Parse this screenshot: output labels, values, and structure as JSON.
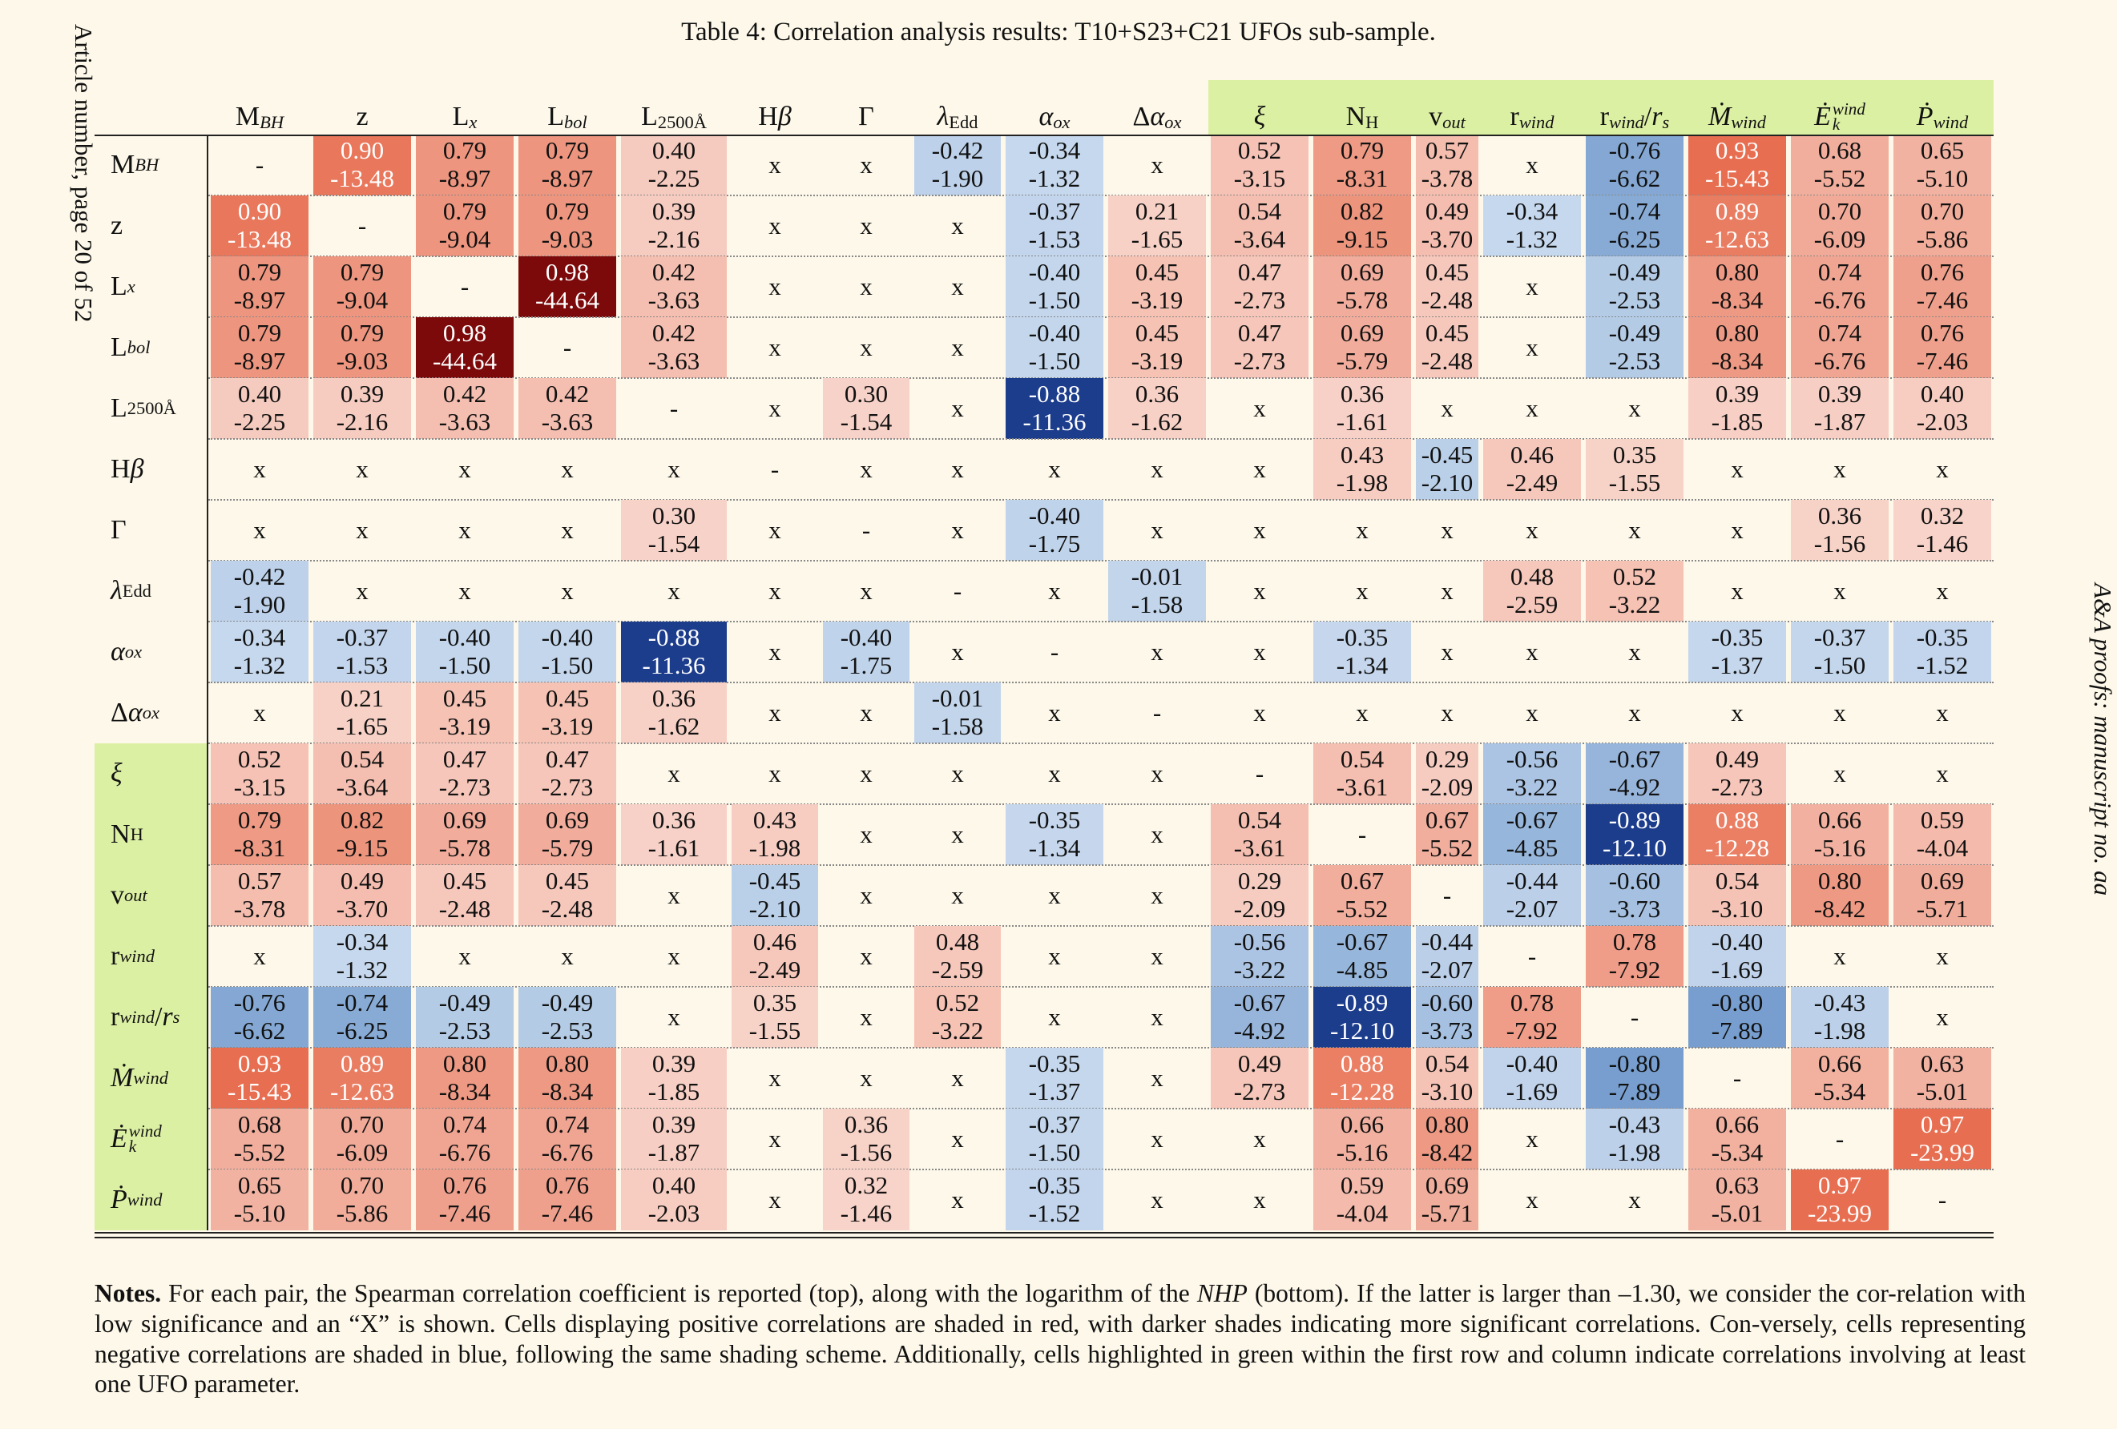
{
  "side_left": "Article number, page 20 of 52",
  "side_right": "A&A proofs: manuscript no. aa",
  "caption": "Table 4: Correlation analysis results: T10+S23+C21 UFOs sub-sample.",
  "notes": {
    "bold": "Notes.",
    "p1": " For each pair, the Spearman correlation coefficient is reported (top), along with the logarithm of the ",
    "nhp": "NHP",
    "p2": " (bottom). If the latter is larger than –1.30, we consider the cor-relation with low significance and an “X” is shown. Cells displaying positive correlations are shaded in red, with darker shades indicating more significant correlations. Con-versely, cells representing negative correlations are shaded in blue, following the same shading scheme. Additionally, cells highlighted in green within the first row and column indicate correlations involving at least one UFO parameter."
  },
  "colors": {
    "positive": "#c1272d",
    "negative": "#1f4e9a",
    "ufo_highlight": "#dcf0a4",
    "background": "#fdf8e9"
  },
  "params": [
    {
      "base": "M",
      "sub": "BH",
      "ital": false,
      "ufo": false
    },
    {
      "base": "z",
      "ital": false,
      "ufo": false
    },
    {
      "base": "L",
      "sub": "x",
      "ufo": false
    },
    {
      "base": "L",
      "sub": "bol",
      "ufo": false
    },
    {
      "base": "L",
      "sub": "2500Å",
      "subRoman": true,
      "ufo": false
    },
    {
      "base": "Hβ",
      "betaItal": true,
      "ufo": false
    },
    {
      "base": "Γ",
      "ufo": false
    },
    {
      "base": "λ",
      "sub": "Edd",
      "subRoman": true,
      "baseItal": true,
      "ufo": false
    },
    {
      "base": "α",
      "sub": "ox",
      "baseItal": true,
      "ufo": false
    },
    {
      "base": "Δα",
      "sub": "ox",
      "alphaItal": true,
      "ufo": false
    },
    {
      "base": "ξ",
      "baseItal": true,
      "ufo": true
    },
    {
      "base": "N",
      "sub": "H",
      "subRoman": true,
      "ufo": true
    },
    {
      "base": "v",
      "sub": "out",
      "ufo": true
    },
    {
      "base": "r",
      "sub": "wind",
      "ufo": true
    },
    {
      "base": "r",
      "sub": "wind",
      "suffix": "/r",
      "suffixSub": "s",
      "ufo": true
    },
    {
      "base": "Ṁ",
      "sub": "wind",
      "baseItal": true,
      "ufo": true
    },
    {
      "base": "Ė",
      "sub": "k",
      "sup": "wind",
      "baseItal": true,
      "ufo": true
    },
    {
      "base": "Ṗ",
      "sub": "wind",
      "baseItal": true,
      "ufo": true
    }
  ],
  "rows": [
    [
      "-",
      "0.90|-13.48",
      "0.79|-8.97",
      "0.79|-8.97",
      "0.40|-2.25",
      "x",
      "x",
      "-0.42|-1.90",
      "-0.34|-1.32",
      "x",
      "0.52|-3.15",
      "0.79|-8.31",
      "0.57|-3.78",
      "x",
      "-0.76|-6.62",
      "0.93|-15.43",
      "0.68|-5.52",
      "0.65|-5.10"
    ],
    [
      "0.90|-13.48",
      "-",
      "0.79|-9.04",
      "0.79|-9.03",
      "0.39|-2.16",
      "x",
      "x",
      "x",
      "-0.37|-1.53",
      "0.21|-1.65",
      "0.54|-3.64",
      "0.82|-9.15",
      "0.49|-3.70",
      "-0.34|-1.32",
      "-0.74|-6.25",
      "0.89|-12.63",
      "0.70|-6.09",
      "0.70|-5.86"
    ],
    [
      "0.79|-8.97",
      "0.79|-9.04",
      "-",
      "0.98|-44.64",
      "0.42|-3.63",
      "x",
      "x",
      "x",
      "-0.40|-1.50",
      "0.45|-3.19",
      "0.47|-2.73",
      "0.69|-5.78",
      "0.45|-2.48",
      "x",
      "-0.49|-2.53",
      "0.80|-8.34",
      "0.74|-6.76",
      "0.76|-7.46"
    ],
    [
      "0.79|-8.97",
      "0.79|-9.03",
      "0.98|-44.64",
      "-",
      "0.42|-3.63",
      "x",
      "x",
      "x",
      "-0.40|-1.50",
      "0.45|-3.19",
      "0.47|-2.73",
      "0.69|-5.79",
      "0.45|-2.48",
      "x",
      "-0.49|-2.53",
      "0.80|-8.34",
      "0.74|-6.76",
      "0.76|-7.46"
    ],
    [
      "0.40|-2.25",
      "0.39|-2.16",
      "0.42|-3.63",
      "0.42|-3.63",
      "-",
      "x",
      "0.30|-1.54",
      "x",
      "-0.88|-11.36",
      "0.36|-1.62",
      "x",
      "0.36|-1.61",
      "x",
      "x",
      "x",
      "0.39|-1.85",
      "0.39|-1.87",
      "0.40|-2.03"
    ],
    [
      "x",
      "x",
      "x",
      "x",
      "x",
      "-",
      "x",
      "x",
      "x",
      "x",
      "x",
      "0.43|-1.98",
      "-0.45|-2.10",
      "0.46|-2.49",
      "0.35|-1.55",
      "x",
      "x",
      "x"
    ],
    [
      "x",
      "x",
      "x",
      "x",
      "0.30|-1.54",
      "x",
      "-",
      "x",
      "-0.40|-1.75",
      "x",
      "x",
      "x",
      "x",
      "x",
      "x",
      "x",
      "0.36|-1.56",
      "0.32|-1.46"
    ],
    [
      "-0.42|-1.90",
      "x",
      "x",
      "x",
      "x",
      "x",
      "x",
      "-",
      "x",
      "-0.01|-1.58",
      "x",
      "x",
      "x",
      "0.48|-2.59",
      "0.52|-3.22",
      "x",
      "x",
      "x"
    ],
    [
      "-0.34|-1.32",
      "-0.37|-1.53",
      "-0.40|-1.50",
      "-0.40|-1.50",
      "-0.88|-11.36",
      "x",
      "-0.40|-1.75",
      "x",
      "-",
      "x",
      "x",
      "-0.35|-1.34",
      "x",
      "x",
      "x",
      "-0.35|-1.37",
      "-0.37|-1.50",
      "-0.35|-1.52"
    ],
    [
      "x",
      "0.21|-1.65",
      "0.45|-3.19",
      "0.45|-3.19",
      "0.36|-1.62",
      "x",
      "x",
      "-0.01|-1.58",
      "x",
      "-",
      "x",
      "x",
      "x",
      "x",
      "x",
      "x",
      "x",
      "x"
    ],
    [
      "0.52|-3.15",
      "0.54|-3.64",
      "0.47|-2.73",
      "0.47|-2.73",
      "x",
      "x",
      "x",
      "x",
      "x",
      "x",
      "-",
      "0.54|-3.61",
      "0.29|-2.09",
      "-0.56|-3.22",
      "-0.67|-4.92",
      "0.49|-2.73",
      "x",
      "x"
    ],
    [
      "0.79|-8.31",
      "0.82|-9.15",
      "0.69|-5.78",
      "0.69|-5.79",
      "0.36|-1.61",
      "0.43|-1.98",
      "x",
      "x",
      "-0.35|-1.34",
      "x",
      "0.54|-3.61",
      "-",
      "0.67|-5.52",
      "-0.67|-4.85",
      "-0.89|-12.10",
      "0.88|-12.28",
      "0.66|-5.16",
      "0.59|-4.04"
    ],
    [
      "0.57|-3.78",
      "0.49|-3.70",
      "0.45|-2.48",
      "0.45|-2.48",
      "x",
      "-0.45|-2.10",
      "x",
      "x",
      "x",
      "x",
      "0.29|-2.09",
      "0.67|-5.52",
      "-",
      "-0.44|-2.07",
      "-0.60|-3.73",
      "0.54|-3.10",
      "0.80|-8.42",
      "0.69|-5.71"
    ],
    [
      "x",
      "-0.34|-1.32",
      "x",
      "x",
      "x",
      "0.46|-2.49",
      "x",
      "0.48|-2.59",
      "x",
      "x",
      "-0.56|-3.22",
      "-0.67|-4.85",
      "-0.44|-2.07",
      "-",
      "0.78|-7.92",
      "-0.40|-1.69",
      "x",
      "x"
    ],
    [
      "-0.76|-6.62",
      "-0.74|-6.25",
      "-0.49|-2.53",
      "-0.49|-2.53",
      "x",
      "0.35|-1.55",
      "x",
      "0.52|-3.22",
      "x",
      "x",
      "-0.67|-4.92",
      "-0.89|-12.10",
      "-0.60|-3.73",
      "0.78|-7.92",
      "-",
      "-0.80|-7.89",
      "-0.43|-1.98",
      "x"
    ],
    [
      "0.93|-15.43",
      "0.89|-12.63",
      "0.80|-8.34",
      "0.80|-8.34",
      "0.39|-1.85",
      "x",
      "x",
      "x",
      "-0.35|-1.37",
      "x",
      "0.49|-2.73",
      "0.88|-12.28",
      "0.54|-3.10",
      "-0.40|-1.69",
      "-0.80|-7.89",
      "-",
      "0.66|-5.34",
      "0.63|-5.01"
    ],
    [
      "0.68|-5.52",
      "0.70|-6.09",
      "0.74|-6.76",
      "0.74|-6.76",
      "0.39|-1.87",
      "x",
      "0.36|-1.56",
      "x",
      "-0.37|-1.50",
      "x",
      "x",
      "0.66|-5.16",
      "0.80|-8.42",
      "x",
      "-0.43|-1.98",
      "0.66|-5.34",
      "-",
      "0.97|-23.99"
    ],
    [
      "0.65|-5.10",
      "0.70|-5.86",
      "0.76|-7.46",
      "0.76|-7.46",
      "0.40|-2.03",
      "x",
      "0.32|-1.46",
      "x",
      "-0.35|-1.52",
      "x",
      "x",
      "0.59|-4.04",
      "0.69|-5.71",
      "x",
      "x",
      "0.63|-5.01",
      "0.97|-23.99",
      "-"
    ]
  ]
}
